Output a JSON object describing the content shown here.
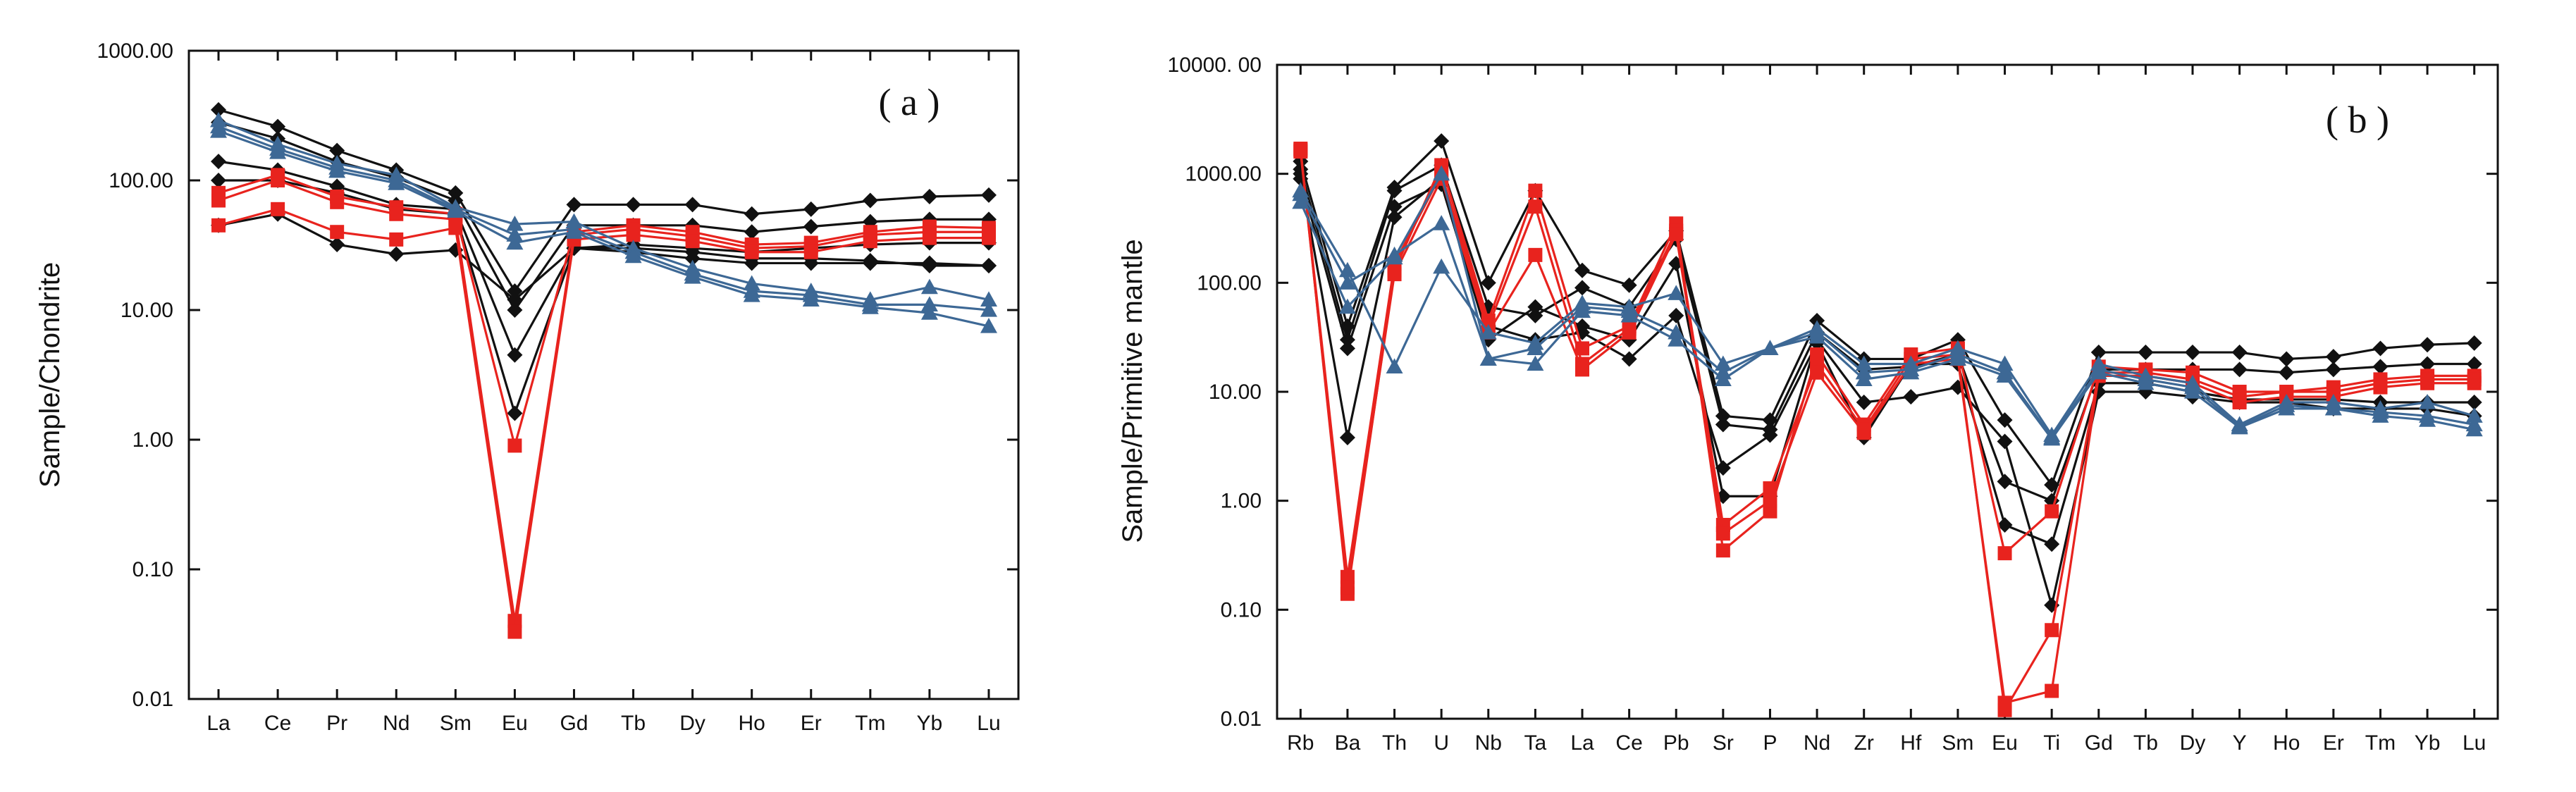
{
  "chart_data": [
    {
      "type": "line",
      "panel_label": "( a )",
      "ylabel": "Sample/Chondrite",
      "yscale": "log",
      "ylim": [
        0.01,
        1000
      ],
      "yticks": [
        "0.01",
        "0.10",
        "1.00",
        "10.00",
        "100.00",
        "1000.00"
      ],
      "categories": [
        "La",
        "Ce",
        "Pr",
        "Nd",
        "Sm",
        "Eu",
        "Gd",
        "Tb",
        "Dy",
        "Ho",
        "Er",
        "Tm",
        "Yb",
        "Lu"
      ],
      "colors": {
        "black": "#111111",
        "red": "#e8231e",
        "blue": "#3d6895"
      },
      "series": [
        {
          "name": "black-1",
          "group": "black",
          "marker": "diamond",
          "values": [
            350,
            260,
            170,
            120,
            80,
            14,
            65,
            65,
            65,
            55,
            60,
            70,
            75,
            77
          ]
        },
        {
          "name": "black-2",
          "group": "black",
          "marker": "diamond",
          "values": [
            280,
            210,
            140,
            105,
            70,
            10,
            45,
            45,
            45,
            40,
            44,
            48,
            50,
            50
          ]
        },
        {
          "name": "black-3",
          "group": "black",
          "marker": "diamond",
          "values": [
            140,
            120,
            90,
            65,
            60,
            4.5,
            30,
            32,
            30,
            28,
            30,
            32,
            33,
            33
          ]
        },
        {
          "name": "black-4",
          "group": "black",
          "marker": "diamond",
          "values": [
            100,
            100,
            80,
            60,
            55,
            1.6,
            30,
            30,
            28,
            25,
            25,
            24,
            22,
            22
          ]
        },
        {
          "name": "black-5",
          "group": "black",
          "marker": "diamond",
          "values": [
            45,
            55,
            32,
            27,
            29,
            12,
            30,
            28,
            25,
            23,
            23,
            23,
            23,
            22
          ]
        },
        {
          "name": "red-1",
          "group": "red",
          "marker": "square",
          "values": [
            80,
            110,
            75,
            62,
            55,
            0.9,
            40,
            45,
            40,
            32,
            33,
            40,
            44,
            43
          ]
        },
        {
          "name": "red-2",
          "group": "red",
          "marker": "square",
          "values": [
            70,
            100,
            68,
            55,
            50,
            0.04,
            38,
            42,
            37,
            30,
            31,
            38,
            40,
            40
          ]
        },
        {
          "name": "red-3",
          "group": "red",
          "marker": "square",
          "values": [
            45,
            60,
            40,
            35,
            43,
            0.033,
            35,
            38,
            34,
            28,
            28,
            34,
            36,
            36
          ]
        },
        {
          "name": "blue-1",
          "group": "blue",
          "marker": "triangle",
          "values": [
            290,
            190,
            135,
            110,
            62,
            46,
            48,
            30,
            21,
            16,
            14,
            12,
            15,
            12
          ]
        },
        {
          "name": "blue-2",
          "group": "blue",
          "marker": "triangle",
          "values": [
            260,
            175,
            125,
            100,
            60,
            38,
            42,
            28,
            19,
            14,
            13,
            11,
            11,
            10
          ]
        },
        {
          "name": "blue-3",
          "group": "blue",
          "marker": "triangle",
          "values": [
            240,
            165,
            118,
            95,
            58,
            33,
            40,
            26,
            18,
            13,
            12,
            10.5,
            9.5,
            7.5
          ]
        }
      ]
    },
    {
      "type": "line",
      "panel_label": "( b )",
      "ylabel": "Sample/Primitive mantle",
      "yscale": "log",
      "ylim": [
        0.01,
        10000
      ],
      "yticks": [
        "0.01",
        "0.10",
        "1.00",
        "10.00",
        "100.00",
        "1000.00",
        "10000. 00"
      ],
      "categories": [
        "Rb",
        "Ba",
        "Th",
        "U",
        "Nb",
        "Ta",
        "La",
        "Ce",
        "Pb",
        "Sr",
        "P",
        "Nd",
        "Zr",
        "Hf",
        "Sm",
        "Eu",
        "Ti",
        "Gd",
        "Tb",
        "Dy",
        "Y",
        "Ho",
        "Er",
        "Tm",
        "Yb",
        "Lu"
      ],
      "colors": {
        "black": "#111111",
        "red": "#e8231e",
        "blue": "#3d6895"
      },
      "series": [
        {
          "name": "black-1",
          "group": "black",
          "marker": "diamond",
          "values": [
            1300,
            40,
            750,
            2000,
            100,
            700,
            130,
            95,
            300,
            6,
            5.5,
            45,
            20,
            20,
            30,
            5.5,
            1.4,
            23,
            23,
            23,
            23,
            20,
            21,
            25,
            27,
            28
          ]
        },
        {
          "name": "black-2",
          "group": "black",
          "marker": "diamond",
          "values": [
            1100,
            30,
            700,
            1200,
            60,
            50,
            90,
            60,
            250,
            5,
            4.5,
            35,
            16,
            17,
            22,
            1.5,
            1.0,
            16,
            16,
            16,
            16,
            15,
            16,
            17,
            18,
            18
          ]
        },
        {
          "name": "black-3",
          "group": "black",
          "marker": "diamond",
          "values": [
            1000,
            3.8,
            400,
            900,
            40,
            30,
            35,
            20,
            50,
            2,
            4,
            28,
            3.8,
            18,
            18,
            0.6,
            0.4,
            12,
            12,
            10,
            8.5,
            8.5,
            8.5,
            8,
            8,
            8
          ]
        },
        {
          "name": "black-4",
          "group": "black",
          "marker": "diamond",
          "values": [
            900,
            25,
            500,
            800,
            30,
            60,
            40,
            30,
            150,
            1.1,
            1.1,
            30,
            8,
            9,
            11,
            3.5,
            0.11,
            10,
            10,
            9,
            8,
            8,
            7,
            7,
            7,
            6
          ]
        },
        {
          "name": "red-1",
          "group": "red",
          "marker": "square",
          "values": [
            1700,
            0.14,
            130,
            1200,
            45,
            700,
            25,
            40,
            350,
            0.35,
            0.8,
            22,
            5,
            22,
            25,
            0.33,
            0.8,
            17,
            16,
            15,
            10,
            10,
            11,
            13,
            14,
            14
          ]
        },
        {
          "name": "red-2",
          "group": "red",
          "marker": "square",
          "values": [
            1650,
            0.2,
            150,
            1000,
            40,
            500,
            18,
            38,
            300,
            0.6,
            1.3,
            18,
            4.5,
            20,
            22,
            0.012,
            0.065,
            15,
            15,
            13,
            9,
            10,
            10,
            12,
            13,
            13
          ]
        },
        {
          "name": "red-3",
          "group": "red",
          "marker": "square",
          "values": [
            1600,
            0.16,
            120,
            900,
            35,
            180,
            16,
            35,
            280,
            0.5,
            1.0,
            15,
            4.2,
            18,
            20,
            0.014,
            0.018,
            14,
            14,
            12,
            8,
            9,
            9,
            11,
            12,
            12
          ]
        },
        {
          "name": "blue-1",
          "group": "blue",
          "marker": "triangle",
          "values": [
            700,
            130,
            17,
            140,
            35,
            28,
            65,
            60,
            80,
            18,
            25,
            38,
            18,
            18,
            25,
            18,
            4,
            18,
            14,
            12,
            5,
            8,
            8,
            7,
            8,
            6
          ]
        },
        {
          "name": "blue-2",
          "group": "blue",
          "marker": "triangle",
          "values": [
            650,
            100,
            180,
            350,
            20,
            25,
            60,
            55,
            35,
            15,
            25,
            35,
            15,
            16,
            22,
            15,
            3.8,
            16,
            13,
            11,
            4.8,
            7.5,
            7,
            6.5,
            6,
            5
          ]
        },
        {
          "name": "blue-3",
          "group": "blue",
          "marker": "triangle",
          "values": [
            550,
            60,
            170,
            1000,
            20,
            18,
            55,
            50,
            30,
            13,
            25,
            32,
            13,
            15,
            20,
            14,
            3.7,
            15,
            12,
            10,
            4.7,
            7,
            7,
            6,
            5.5,
            4.5
          ]
        }
      ]
    }
  ]
}
